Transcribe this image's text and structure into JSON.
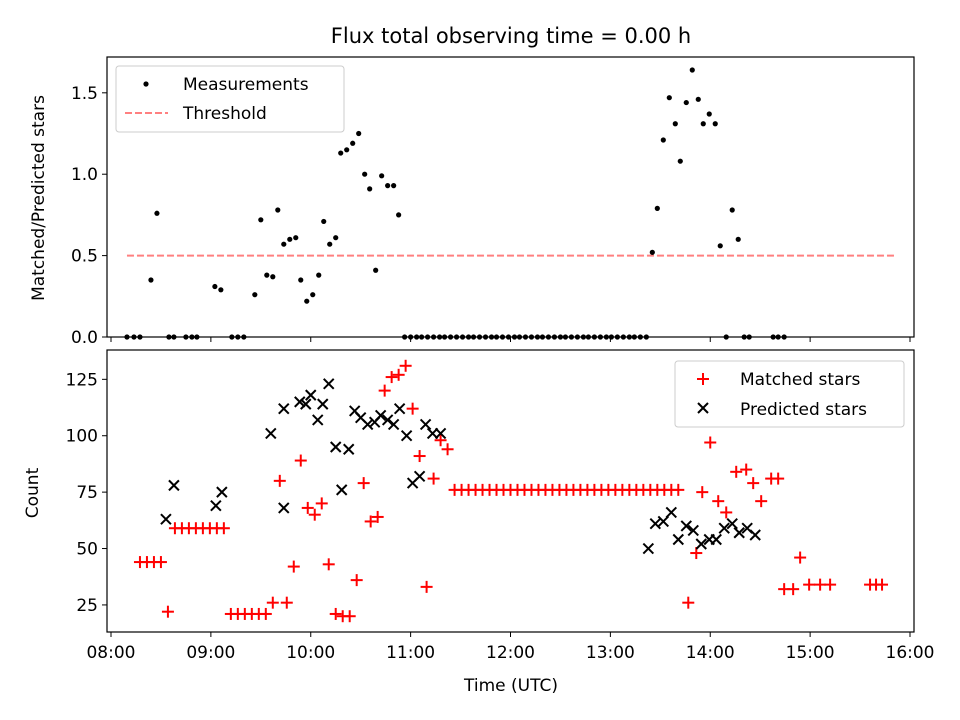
{
  "chart_data": [
    {
      "type": "scatter",
      "title": "Flux total observing time = 0.00 h",
      "xlabel": "",
      "ylabel": "Matched/Predicted stars",
      "ylim": [
        0,
        1.72
      ],
      "yticks": [
        0.0,
        0.5,
        1.0,
        1.5
      ],
      "ytick_labels": [
        "0.0",
        "0.5",
        "1.0",
        "1.5"
      ],
      "xlim_hours": [
        7.96,
        16.04
      ],
      "xticks": [
        8,
        9,
        10,
        11,
        12,
        13,
        14,
        15,
        16
      ],
      "xtick_labels": [
        "",
        "",
        "",
        "",
        "",
        "",
        "",
        "",
        ""
      ],
      "legend_position": "top-left",
      "legend": [
        {
          "label": "Measurements",
          "marker": "dot",
          "color": "#000000"
        },
        {
          "label": "Threshold",
          "marker": "dashed-line",
          "color": "#ff8080"
        }
      ],
      "threshold": {
        "value": 0.5,
        "x_start": 8.16,
        "x_end": 15.85,
        "color": "#ff8080"
      },
      "series": [
        {
          "name": "Measurements",
          "color": "#000000",
          "points": [
            [
              8.16,
              0
            ],
            [
              8.23,
              0
            ],
            [
              8.29,
              0
            ],
            [
              8.4,
              0.35
            ],
            [
              8.46,
              0.76
            ],
            [
              8.58,
              0
            ],
            [
              8.63,
              0
            ],
            [
              8.75,
              0
            ],
            [
              8.81,
              0
            ],
            [
              8.86,
              0
            ],
            [
              9.04,
              0.31
            ],
            [
              9.1,
              0.29
            ],
            [
              9.21,
              0
            ],
            [
              9.27,
              0
            ],
            [
              9.33,
              0
            ],
            [
              9.44,
              0.26
            ],
            [
              9.5,
              0.72
            ],
            [
              9.56,
              0.38
            ],
            [
              9.62,
              0.37
            ],
            [
              9.67,
              0.78
            ],
            [
              9.73,
              0.57
            ],
            [
              9.79,
              0.6
            ],
            [
              9.85,
              0.61
            ],
            [
              9.9,
              0.35
            ],
            [
              9.96,
              0.22
            ],
            [
              10.02,
              0.26
            ],
            [
              10.08,
              0.38
            ],
            [
              10.13,
              0.71
            ],
            [
              10.19,
              0.57
            ],
            [
              10.25,
              0.61
            ],
            [
              10.3,
              1.13
            ],
            [
              10.36,
              1.15
            ],
            [
              10.42,
              1.19
            ],
            [
              10.48,
              1.25
            ],
            [
              10.54,
              1.0
            ],
            [
              10.59,
              0.91
            ],
            [
              10.65,
              0.41
            ],
            [
              10.71,
              0.99
            ],
            [
              10.77,
              0.93
            ],
            [
              10.83,
              0.93
            ],
            [
              10.88,
              0.75
            ],
            [
              10.94,
              0
            ],
            [
              11.0,
              0
            ],
            [
              11.06,
              0
            ],
            [
              11.11,
              0
            ],
            [
              11.17,
              0
            ],
            [
              11.23,
              0
            ],
            [
              11.29,
              0
            ],
            [
              11.34,
              0
            ],
            [
              11.4,
              0
            ],
            [
              11.46,
              0
            ],
            [
              11.52,
              0
            ],
            [
              11.58,
              0
            ],
            [
              11.63,
              0
            ],
            [
              11.69,
              0
            ],
            [
              11.75,
              0
            ],
            [
              11.81,
              0
            ],
            [
              11.86,
              0
            ],
            [
              11.92,
              0
            ],
            [
              11.98,
              0
            ],
            [
              12.04,
              0
            ],
            [
              12.09,
              0
            ],
            [
              12.15,
              0
            ],
            [
              12.21,
              0
            ],
            [
              12.27,
              0
            ],
            [
              12.32,
              0
            ],
            [
              12.38,
              0
            ],
            [
              12.44,
              0
            ],
            [
              12.5,
              0
            ],
            [
              12.55,
              0
            ],
            [
              12.61,
              0
            ],
            [
              12.67,
              0
            ],
            [
              12.73,
              0
            ],
            [
              12.78,
              0
            ],
            [
              12.84,
              0
            ],
            [
              12.9,
              0
            ],
            [
              12.96,
              0
            ],
            [
              13.01,
              0
            ],
            [
              13.07,
              0
            ],
            [
              13.13,
              0
            ],
            [
              13.19,
              0
            ],
            [
              13.24,
              0
            ],
            [
              13.3,
              0
            ],
            [
              13.36,
              0
            ],
            [
              13.42,
              0.52
            ],
            [
              13.47,
              0.79
            ],
            [
              13.53,
              1.21
            ],
            [
              13.59,
              1.47
            ],
            [
              13.65,
              1.31
            ],
            [
              13.7,
              1.08
            ],
            [
              13.76,
              1.44
            ],
            [
              13.82,
              1.64
            ],
            [
              13.88,
              1.46
            ],
            [
              13.93,
              1.31
            ],
            [
              13.99,
              1.37
            ],
            [
              14.05,
              1.31
            ],
            [
              14.1,
              0.56
            ],
            [
              14.16,
              0
            ],
            [
              14.22,
              0.78
            ],
            [
              14.28,
              0.6
            ],
            [
              14.34,
              0
            ],
            [
              14.39,
              0
            ],
            [
              14.63,
              0
            ],
            [
              14.68,
              0
            ],
            [
              14.74,
              0
            ]
          ]
        }
      ]
    },
    {
      "type": "scatter",
      "title": "",
      "xlabel": "Time (UTC)",
      "ylabel": "Count",
      "ylim": [
        13,
        138
      ],
      "yticks": [
        25,
        50,
        75,
        100,
        125
      ],
      "ytick_labels": [
        "25",
        "50",
        "75",
        "100",
        "125"
      ],
      "xlim_hours": [
        7.96,
        16.04
      ],
      "xticks": [
        8,
        9,
        10,
        11,
        12,
        13,
        14,
        15,
        16
      ],
      "xtick_labels": [
        "08:00",
        "09:00",
        "10:00",
        "11:00",
        "12:00",
        "13:00",
        "14:00",
        "15:00",
        "16:00"
      ],
      "legend_position": "top-right",
      "series": [
        {
          "name": "Matched stars",
          "marker": "plus",
          "color": "#ff0000",
          "points": [
            [
              8.29,
              44
            ],
            [
              8.36,
              44
            ],
            [
              8.43,
              44
            ],
            [
              8.5,
              44
            ],
            [
              8.57,
              22
            ],
            [
              8.64,
              59
            ],
            [
              8.71,
              59
            ],
            [
              8.78,
              59
            ],
            [
              8.85,
              59
            ],
            [
              8.92,
              59
            ],
            [
              8.99,
              59
            ],
            [
              9.06,
              59
            ],
            [
              9.13,
              59
            ],
            [
              9.2,
              21
            ],
            [
              9.27,
              21
            ],
            [
              9.34,
              21
            ],
            [
              9.41,
              21
            ],
            [
              9.48,
              21
            ],
            [
              9.55,
              21
            ],
            [
              9.62,
              26
            ],
            [
              9.69,
              80
            ],
            [
              9.76,
              26
            ],
            [
              9.83,
              42
            ],
            [
              9.9,
              89
            ],
            [
              9.97,
              68
            ],
            [
              10.04,
              65
            ],
            [
              10.11,
              70
            ],
            [
              10.18,
              43
            ],
            [
              10.25,
              21
            ],
            [
              10.32,
              20
            ],
            [
              10.39,
              20
            ],
            [
              10.46,
              36
            ],
            [
              10.53,
              79
            ],
            [
              10.6,
              62
            ],
            [
              10.67,
              64
            ],
            [
              10.74,
              120
            ],
            [
              10.81,
              126
            ],
            [
              10.88,
              127
            ],
            [
              10.95,
              131
            ],
            [
              11.02,
              112
            ],
            [
              11.09,
              91
            ],
            [
              11.16,
              33
            ],
            [
              11.23,
              81
            ],
            [
              11.3,
              98
            ],
            [
              11.37,
              94
            ],
            [
              11.44,
              76
            ],
            [
              11.51,
              76
            ],
            [
              11.58,
              76
            ],
            [
              11.65,
              76
            ],
            [
              11.72,
              76
            ],
            [
              11.79,
              76
            ],
            [
              11.86,
              76
            ],
            [
              11.93,
              76
            ],
            [
              12.0,
              76
            ],
            [
              12.07,
              76
            ],
            [
              12.14,
              76
            ],
            [
              12.21,
              76
            ],
            [
              12.28,
              76
            ],
            [
              12.35,
              76
            ],
            [
              12.42,
              76
            ],
            [
              12.49,
              76
            ],
            [
              12.56,
              76
            ],
            [
              12.63,
              76
            ],
            [
              12.7,
              76
            ],
            [
              12.77,
              76
            ],
            [
              12.84,
              76
            ],
            [
              12.91,
              76
            ],
            [
              12.98,
              76
            ],
            [
              13.05,
              76
            ],
            [
              13.12,
              76
            ],
            [
              13.19,
              76
            ],
            [
              13.26,
              76
            ],
            [
              13.33,
              76
            ],
            [
              13.4,
              76
            ],
            [
              13.47,
              76
            ],
            [
              13.54,
              76
            ],
            [
              13.61,
              76
            ],
            [
              13.68,
              76
            ],
            [
              13.78,
              26
            ],
            [
              13.86,
              48
            ],
            [
              13.92,
              75
            ],
            [
              14.0,
              97
            ],
            [
              14.08,
              71
            ],
            [
              14.16,
              66
            ],
            [
              14.26,
              84
            ],
            [
              14.36,
              85
            ],
            [
              14.43,
              79
            ],
            [
              14.51,
              71
            ],
            [
              14.61,
              81
            ],
            [
              14.68,
              81
            ],
            [
              14.74,
              32
            ],
            [
              14.83,
              32
            ],
            [
              14.9,
              46
            ],
            [
              14.99,
              34
            ],
            [
              15.1,
              34
            ],
            [
              15.2,
              34
            ],
            [
              15.6,
              34
            ],
            [
              15.66,
              34
            ],
            [
              15.72,
              34
            ]
          ]
        },
        {
          "name": "Predicted stars",
          "marker": "x",
          "color": "#000000",
          "points": [
            [
              8.55,
              63
            ],
            [
              8.63,
              78
            ],
            [
              9.05,
              69
            ],
            [
              9.11,
              75
            ],
            [
              9.6,
              101
            ],
            [
              9.73,
              112
            ],
            [
              9.73,
              68
            ],
            [
              9.89,
              115
            ],
            [
              9.95,
              114
            ],
            [
              10.0,
              118
            ],
            [
              10.07,
              107
            ],
            [
              10.12,
              114
            ],
            [
              10.18,
              123
            ],
            [
              10.25,
              95
            ],
            [
              10.31,
              76
            ],
            [
              10.38,
              94
            ],
            [
              10.44,
              111
            ],
            [
              10.5,
              108
            ],
            [
              10.57,
              105
            ],
            [
              10.64,
              106
            ],
            [
              10.7,
              109
            ],
            [
              10.77,
              107
            ],
            [
              10.83,
              105
            ],
            [
              10.89,
              112
            ],
            [
              10.96,
              100
            ],
            [
              11.02,
              79
            ],
            [
              11.09,
              82
            ],
            [
              11.15,
              105
            ],
            [
              11.22,
              101
            ],
            [
              11.3,
              101
            ],
            [
              13.38,
              50
            ],
            [
              13.45,
              61
            ],
            [
              13.53,
              62
            ],
            [
              13.61,
              66
            ],
            [
              13.68,
              54
            ],
            [
              13.76,
              60
            ],
            [
              13.83,
              58
            ],
            [
              13.91,
              52
            ],
            [
              13.99,
              54
            ],
            [
              14.06,
              54
            ],
            [
              14.14,
              59
            ],
            [
              14.22,
              61
            ],
            [
              14.29,
              57
            ],
            [
              14.37,
              59
            ],
            [
              14.45,
              56
            ]
          ]
        }
      ]
    }
  ]
}
